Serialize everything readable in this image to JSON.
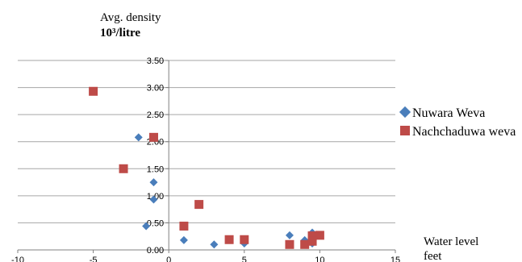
{
  "chart_data": {
    "type": "scatter",
    "ylabel_line1": "Avg. density",
    "ylabel_line2": "10³/litre",
    "xlabel_line1": "Water level",
    "xlabel_line2": "feet",
    "xlim": [
      -10,
      15
    ],
    "ylim": [
      0,
      3.5
    ],
    "x_ticks": [
      "-10",
      "-5",
      "0",
      "5",
      "10",
      "15"
    ],
    "y_ticks": [
      "0.00",
      "0.50",
      "1.00",
      "1.50",
      "2.00",
      "2.50",
      "3.00",
      "3.50"
    ],
    "y_tick_values": [
      0,
      0.5,
      1.0,
      1.5,
      2.0,
      2.5,
      3.0,
      3.5
    ],
    "x_tick_values": [
      -10,
      -5,
      0,
      5,
      10,
      15
    ],
    "grid": "horizontal",
    "legend_position": "right",
    "series": [
      {
        "name": "Nuwara Weva",
        "marker": "diamond",
        "color": "#4a7ebb",
        "points": [
          {
            "x": -2,
            "y": 2.08
          },
          {
            "x": -1,
            "y": 1.25
          },
          {
            "x": -1,
            "y": 0.93
          },
          {
            "x": -1.5,
            "y": 0.44
          },
          {
            "x": 1,
            "y": 0.18
          },
          {
            "x": 3,
            "y": 0.1
          },
          {
            "x": 5,
            "y": 0.12
          },
          {
            "x": 8,
            "y": 0.27
          },
          {
            "x": 9,
            "y": 0.18
          },
          {
            "x": 9.5,
            "y": 0.32
          },
          {
            "x": 9.5,
            "y": 0.12
          }
        ]
      },
      {
        "name": "Nachchaduwa weva",
        "marker": "square",
        "color": "#be4b48",
        "points": [
          {
            "x": -5,
            "y": 2.93
          },
          {
            "x": -1,
            "y": 2.08
          },
          {
            "x": -3,
            "y": 1.5
          },
          {
            "x": 2,
            "y": 0.84
          },
          {
            "x": 1,
            "y": 0.44
          },
          {
            "x": 4,
            "y": 0.19
          },
          {
            "x": 5,
            "y": 0.19
          },
          {
            "x": 8,
            "y": 0.1
          },
          {
            "x": 9,
            "y": 0.1
          },
          {
            "x": 9.5,
            "y": 0.26
          },
          {
            "x": 10,
            "y": 0.27
          },
          {
            "x": 9.5,
            "y": 0.16
          }
        ]
      }
    ]
  }
}
